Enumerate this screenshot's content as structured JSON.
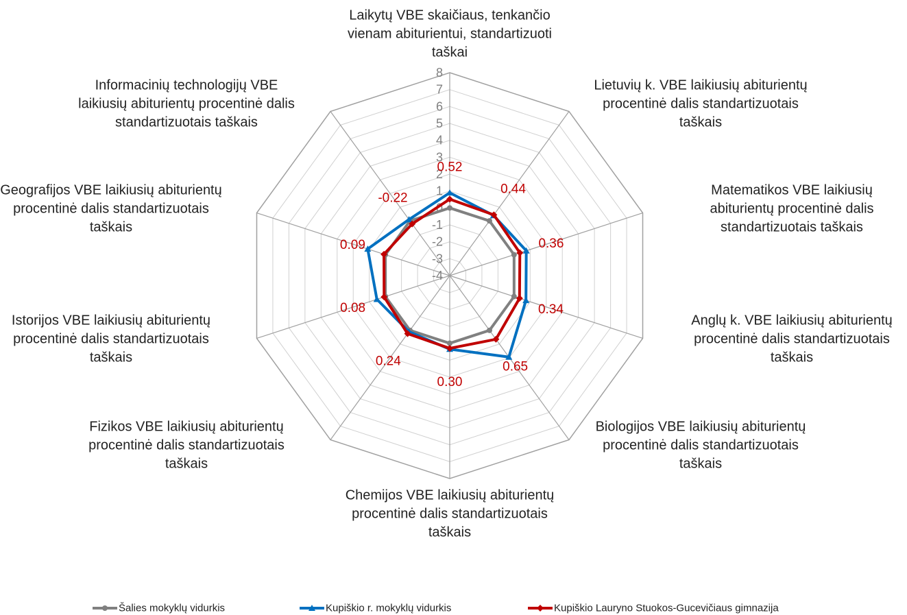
{
  "chart_data": {
    "type": "radar",
    "categories": [
      "Laikytų VBE skaičiaus, tenkančio vienam abiturientui, standartizuoti taškai",
      "Lietuvių k. VBE laikiusių abiturientų procentinė dalis standartizuotais taškais",
      "Matematikos VBE laikiusių abiturientų procentinė dalis standartizuotais taškais",
      "Anglų k. VBE laikiusių abiturientų procentinė dalis standartizuotais taškais",
      "Biologijos VBE laikiusių abiturientų procentinė dalis standartizuotais taškais",
      "Chemijos VBE laikiusių abiturientų procentinė dalis standartizuotais taškais",
      "Fizikos VBE laikiusių abiturientų procentinė dalis standartizuotais taškais",
      "Istorijos VBE laikiusių abiturientų procentinė dalis standartizuotais taškais",
      "Geografijos VBE laikiusių abiturientų procentinė dalis standartizuotais taškais",
      "Informacinių technologijų VBE laikiusių abiturientų procentinė dalis standartizuotais taškais"
    ],
    "series": [
      {
        "name": "Šalies mokyklų vidurkis",
        "color": "#808080",
        "marker": "circle",
        "values": [
          0,
          0,
          0,
          0,
          0,
          0,
          0,
          0,
          0,
          0
        ]
      },
      {
        "name": "Kupiškio r. mokyklų vidurkis",
        "color": "#0070c0",
        "marker": "triangle",
        "values": [
          0.9,
          0.4,
          0.76,
          0.74,
          1.95,
          0.35,
          0.1,
          0.53,
          1.1,
          0.1
        ]
      },
      {
        "name": "Kupiškio Lauryno Stuokos-Gucevičiaus gimnazija",
        "color": "#c00000",
        "marker": "diamond",
        "values": [
          0.52,
          0.44,
          0.36,
          0.34,
          0.65,
          0.3,
          0.24,
          0.08,
          0.09,
          -0.22
        ],
        "value_labels": [
          "0.52",
          "0.44",
          "0.36",
          "0.34",
          "0.65",
          "0.30",
          "0.24",
          "0.08",
          "0.09",
          "-0.22"
        ]
      }
    ],
    "ylim": [
      -4,
      8
    ],
    "yticks": [
      -4,
      -3,
      -2,
      -1,
      0,
      1,
      2,
      3,
      4,
      5,
      6,
      7,
      8
    ],
    "grid": true,
    "legend": "bottom"
  }
}
